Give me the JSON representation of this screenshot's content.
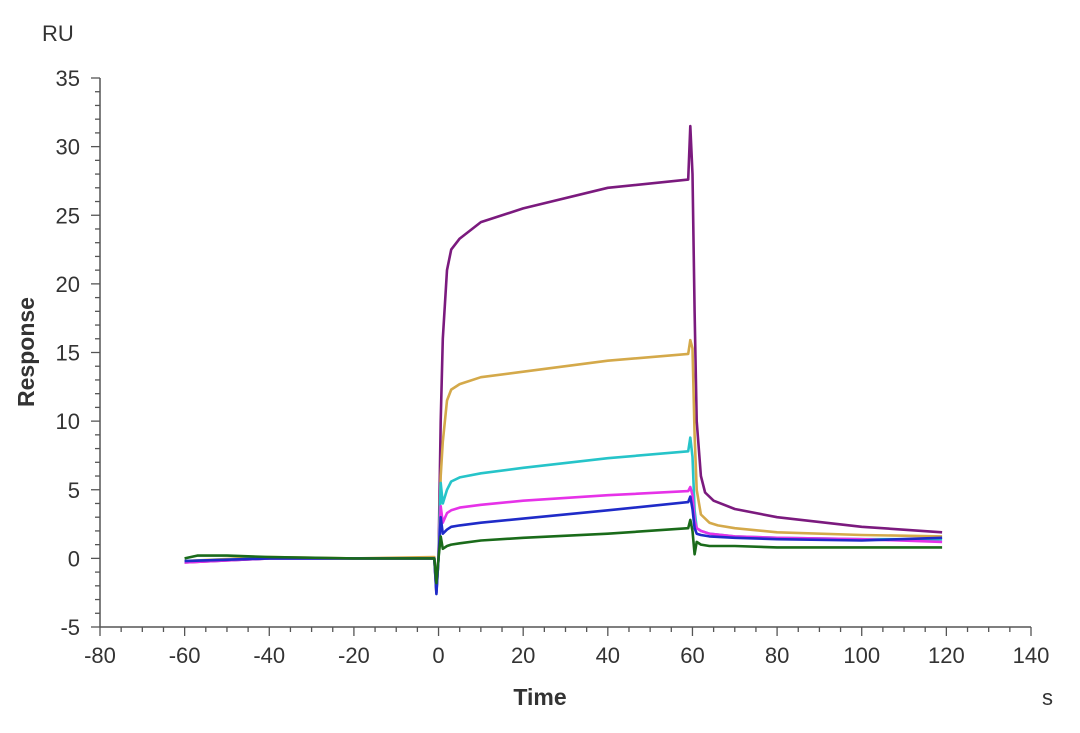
{
  "chart_data": {
    "type": "line",
    "title": "",
    "xlabel": "Time",
    "ylabel": "Response",
    "x_unit": "s",
    "y_unit": "RU",
    "xlim": [
      -80,
      140
    ],
    "ylim": [
      -5,
      35
    ],
    "x_ticks": [
      -80,
      -60,
      -40,
      -20,
      0,
      20,
      40,
      60,
      80,
      100,
      120,
      140
    ],
    "y_ticks": [
      -5,
      0,
      5,
      10,
      15,
      20,
      25,
      30,
      35
    ],
    "grid": false,
    "legend": "none",
    "series": [
      {
        "color": "#7b1a7e",
        "x": [
          -60,
          -40,
          -20,
          -1,
          -0.5,
          0,
          0.5,
          1,
          2,
          3,
          5,
          10,
          20,
          40,
          59,
          59.5,
          60,
          60.5,
          61,
          62,
          63,
          65,
          70,
          80,
          100,
          119
        ],
        "y": [
          -0.3,
          0,
          0,
          0,
          -2.5,
          0,
          10,
          16,
          21,
          22.5,
          23.3,
          24.5,
          25.5,
          27,
          27.6,
          31.5,
          28,
          18,
          10,
          6,
          4.8,
          4.2,
          3.6,
          3,
          2.3,
          1.9
        ]
      },
      {
        "color": "#d4a94a",
        "x": [
          -60,
          -40,
          -20,
          -1,
          -0.5,
          0,
          0.5,
          1,
          2,
          3,
          5,
          10,
          20,
          40,
          59,
          59.5,
          60,
          60.5,
          61,
          62,
          64,
          66,
          70,
          80,
          100,
          119
        ],
        "y": [
          -0.2,
          0.1,
          0,
          0.1,
          -2,
          0,
          6,
          8.5,
          11.5,
          12.3,
          12.7,
          13.2,
          13.6,
          14.4,
          14.9,
          15.9,
          15.3,
          9,
          5,
          3.2,
          2.6,
          2.4,
          2.2,
          1.9,
          1.7,
          1.6
        ]
      },
      {
        "color": "#26c4c9",
        "x": [
          -60,
          -40,
          -20,
          -1,
          -0.5,
          0,
          0.5,
          1,
          2,
          3,
          5,
          10,
          20,
          40,
          59,
          59.5,
          60,
          60.5,
          61,
          62,
          64,
          70,
          80,
          100,
          119
        ],
        "y": [
          -0.2,
          0,
          0,
          0,
          -2.3,
          0,
          5.5,
          4,
          5,
          5.6,
          5.9,
          6.2,
          6.6,
          7.3,
          7.8,
          8.8,
          7.4,
          3.5,
          2.2,
          2,
          1.8,
          1.6,
          1.5,
          1.4,
          1.4
        ]
      },
      {
        "color": "#e632e8",
        "x": [
          -60,
          -40,
          -20,
          -1,
          -0.5,
          0,
          0.5,
          1,
          2,
          3,
          5,
          10,
          20,
          40,
          59,
          59.5,
          60,
          60.5,
          61,
          62,
          64,
          70,
          80,
          100,
          119
        ],
        "y": [
          -0.3,
          0,
          0,
          0,
          -2.3,
          0,
          3.8,
          2.6,
          3.3,
          3.5,
          3.7,
          3.9,
          4.2,
          4.6,
          4.9,
          5.2,
          4.6,
          2.8,
          2.2,
          2,
          1.8,
          1.6,
          1.5,
          1.4,
          1.2
        ]
      },
      {
        "color": "#1f2bc8",
        "x": [
          -60,
          -40,
          -20,
          -1,
          -0.5,
          0,
          0.5,
          1,
          2,
          3,
          5,
          10,
          20,
          40,
          59,
          59.5,
          60,
          60.5,
          61,
          62,
          64,
          70,
          80,
          100,
          119
        ],
        "y": [
          -0.2,
          0,
          0,
          0,
          -2.6,
          0,
          3,
          1.8,
          2.1,
          2.3,
          2.4,
          2.6,
          2.9,
          3.5,
          4.1,
          4.5,
          3.6,
          2.2,
          1.8,
          1.7,
          1.6,
          1.5,
          1.4,
          1.3,
          1.5
        ]
      },
      {
        "color": "#1a6b1a",
        "x": [
          -60,
          -57,
          -50,
          -40,
          -20,
          -1,
          -0.5,
          0,
          0.5,
          1,
          2,
          3,
          5,
          10,
          20,
          40,
          59,
          59.5,
          60,
          60.5,
          61,
          62,
          64,
          70,
          80,
          100,
          119
        ],
        "y": [
          0,
          0.2,
          0.2,
          0.1,
          0,
          0,
          -1.8,
          0,
          1.6,
          0.7,
          0.9,
          1,
          1.1,
          1.3,
          1.5,
          1.8,
          2.2,
          2.8,
          2,
          0.3,
          1.2,
          1,
          0.9,
          0.9,
          0.8,
          0.8,
          0.8
        ]
      }
    ]
  }
}
